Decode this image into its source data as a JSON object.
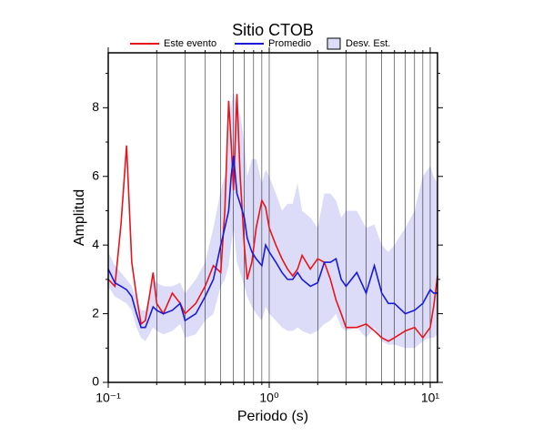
{
  "chart_data": {
    "type": "line",
    "title": "Sitio CTOB",
    "xlabel": "Periodo (s)",
    "ylabel": "Amplitud",
    "log_x": true,
    "xlim": [
      0.1,
      11.1
    ],
    "ylim": [
      0,
      9.6
    ],
    "xticks": [
      {
        "value": 0.1,
        "label": "10⁻¹"
      },
      {
        "value": 1,
        "label": "10⁰"
      },
      {
        "value": 10,
        "label": "10¹"
      }
    ],
    "xminorticks": [
      0.2,
      0.3,
      0.4,
      0.5,
      0.6,
      0.7,
      0.8,
      0.9,
      2,
      3,
      4,
      5,
      6,
      7,
      8,
      9
    ],
    "yticks": [
      0,
      2,
      4,
      6,
      8
    ],
    "yminorticks": [
      1,
      3,
      5,
      7,
      9
    ],
    "grid_x": true,
    "x": [
      0.1,
      0.11,
      0.12,
      0.13,
      0.14,
      0.15,
      0.16,
      0.17,
      0.18,
      0.19,
      0.2,
      0.22,
      0.25,
      0.28,
      0.3,
      0.35,
      0.4,
      0.45,
      0.5,
      0.53,
      0.56,
      0.58,
      0.6,
      0.63,
      0.66,
      0.7,
      0.73,
      0.78,
      0.83,
      0.9,
      0.95,
      1.0,
      1.1,
      1.2,
      1.3,
      1.4,
      1.5,
      1.6,
      1.8,
      2.0,
      2.2,
      2.4,
      2.6,
      2.8,
      3.0,
      3.5,
      4.0,
      4.5,
      5.0,
      5.5,
      6.0,
      7,
      8,
      9,
      10,
      10.5,
      11.1
    ],
    "series": [
      {
        "name": "Este evento",
        "color": "#e8141b",
        "values": [
          3.0,
          2.8,
          4.6,
          6.9,
          3.5,
          2.5,
          1.7,
          1.8,
          2.5,
          3.2,
          2.3,
          2.0,
          2.6,
          2.3,
          2.0,
          2.3,
          2.8,
          3.4,
          3.2,
          5.0,
          8.2,
          7.0,
          5.6,
          8.4,
          6.0,
          4.0,
          3.0,
          3.5,
          4.5,
          5.3,
          5.1,
          4.5,
          4.0,
          3.6,
          3.3,
          3.1,
          3.3,
          3.7,
          3.3,
          3.6,
          3.5,
          3.0,
          2.4,
          2.0,
          1.6,
          1.6,
          1.7,
          1.5,
          1.3,
          1.2,
          1.3,
          1.5,
          1.6,
          1.3,
          1.6,
          2.2,
          3.1
        ]
      },
      {
        "name": "Promedio",
        "color": "#1a1ad8",
        "values": [
          3.3,
          2.9,
          2.8,
          2.7,
          2.5,
          2.0,
          1.6,
          1.6,
          1.9,
          2.2,
          2.1,
          2.0,
          2.1,
          2.3,
          1.8,
          2.0,
          2.5,
          3.0,
          4.0,
          4.5,
          5.0,
          6.0,
          6.6,
          5.5,
          5.2,
          4.8,
          4.2,
          3.8,
          3.6,
          3.4,
          4.0,
          3.8,
          3.5,
          3.2,
          3.0,
          3.0,
          3.2,
          3.0,
          2.8,
          2.9,
          3.5,
          3.5,
          3.6,
          3.0,
          2.8,
          3.2,
          2.6,
          3.4,
          2.6,
          2.3,
          2.3,
          2.0,
          2.1,
          2.3,
          2.7,
          2.6,
          2.6
        ]
      },
      {
        "name": "Desv. Est.",
        "color": "#dcdcf8",
        "type": "band",
        "low": [
          2.8,
          2.5,
          2.4,
          2.3,
          2.1,
          1.6,
          1.3,
          1.2,
          1.4,
          1.6,
          1.5,
          1.4,
          1.5,
          1.7,
          1.3,
          1.4,
          1.8,
          2.0,
          2.8,
          3.0,
          3.4,
          4.0,
          4.5,
          3.5,
          3.2,
          2.8,
          2.5,
          2.2,
          2.0,
          1.8,
          2.2,
          2.0,
          1.8,
          1.6,
          1.5,
          1.5,
          1.6,
          1.5,
          1.4,
          1.5,
          1.7,
          1.8,
          2.0,
          1.6,
          1.5,
          1.6,
          1.3,
          1.6,
          1.2,
          1.1,
          1.1,
          1.0,
          1.0,
          1.2,
          1.3,
          1.3,
          1.4
        ],
        "high": [
          3.8,
          3.4,
          3.2,
          3.0,
          2.8,
          2.4,
          2.1,
          2.1,
          2.5,
          3.0,
          2.9,
          2.8,
          2.8,
          2.9,
          2.6,
          3.0,
          3.5,
          4.5,
          5.6,
          6.0,
          7.0,
          8.0,
          8.5,
          8.0,
          7.8,
          7.0,
          6.0,
          6.5,
          6.5,
          5.8,
          6.2,
          6.0,
          5.5,
          5.0,
          5.2,
          5.2,
          5.8,
          5.0,
          4.8,
          4.5,
          5.5,
          5.5,
          5.3,
          4.8,
          5.0,
          5.0,
          4.5,
          4.6,
          4.0,
          3.8,
          4.0,
          4.5,
          5.0,
          6.0,
          6.3,
          6.0,
          5.8
        ]
      }
    ]
  }
}
